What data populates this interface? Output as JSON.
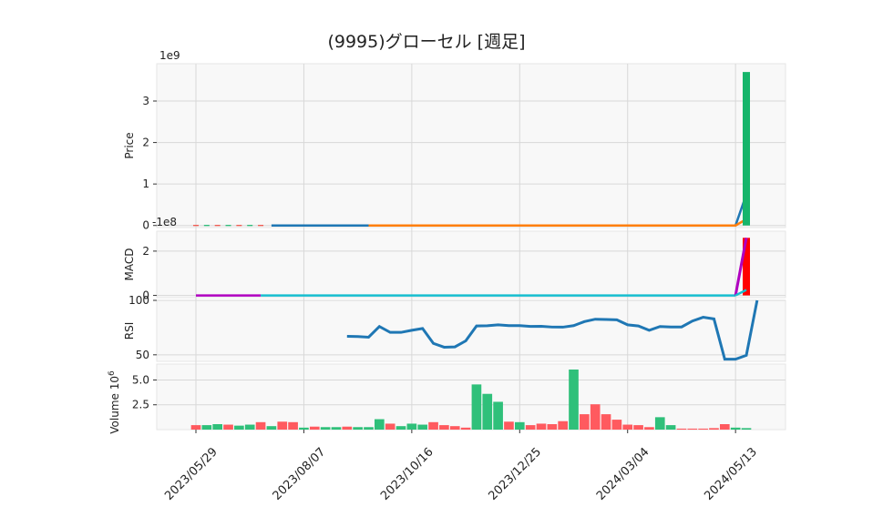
{
  "chart_data": {
    "type": "candlestick-multi-panel",
    "title": "(9995)グローセル  [週足]",
    "x_dates": [
      "2023/05/29",
      "2023/06/05",
      "2023/06/12",
      "2023/06/19",
      "2023/06/26",
      "2023/07/03",
      "2023/07/10",
      "2023/07/17",
      "2023/07/24",
      "2023/07/31",
      "2023/08/07",
      "2023/08/14",
      "2023/08/21",
      "2023/08/28",
      "2023/09/04",
      "2023/09/11",
      "2023/09/18",
      "2023/09/25",
      "2023/10/02",
      "2023/10/09",
      "2023/10/16",
      "2023/10/23",
      "2023/10/30",
      "2023/11/06",
      "2023/11/13",
      "2023/11/20",
      "2023/11/27",
      "2023/12/04",
      "2023/12/11",
      "2023/12/18",
      "2023/12/25",
      "2024/01/01",
      "2024/01/08",
      "2024/01/15",
      "2024/01/22",
      "2024/01/29",
      "2024/02/05",
      "2024/02/12",
      "2024/02/19",
      "2024/02/26",
      "2024/03/04",
      "2024/03/11",
      "2024/03/18",
      "2024/03/25",
      "2024/04/01",
      "2024/04/08",
      "2024/04/15",
      "2024/04/22",
      "2024/04/29",
      "2024/05/06",
      "2024/05/13",
      "2024/05/20"
    ],
    "x_tick_labels": [
      "2023/05/29",
      "2023/08/07",
      "2023/10/16",
      "2023/12/25",
      "2024/03/04",
      "2024/05/13"
    ],
    "panels": {
      "price": {
        "ylabel": "Price",
        "offset_label": "1e9",
        "ylim": [
          -0.05,
          3.9
        ],
        "yticks": [
          0,
          1,
          2,
          3
        ],
        "ytick_labels": [
          "0",
          "1",
          "2",
          "3"
        ],
        "big_candle": {
          "date_index": 51,
          "open": 0,
          "close": 3.7
        },
        "ma_short": {
          "from_index": 0,
          "values_end": 0.75
        },
        "ma_long": {
          "from_index": 16,
          "values_end": 0.15
        },
        "colors": {
          "up": "#16b56b",
          "down": "#f0483e",
          "ma_short": "#1f77b4",
          "ma_long": "#ff7f0e"
        }
      },
      "macd": {
        "ylabel": "MACD",
        "offset_label": "-1e8",
        "ylim": [
          -0.1,
          2.9
        ],
        "yticks": [
          0,
          2
        ],
        "ytick_labels": [
          "0",
          "2"
        ],
        "macd_end": 2.6,
        "signal_end": 0.25,
        "hist_end": 2.6,
        "colors": {
          "macd": "#b000c0",
          "signal": "#17becf",
          "hist": "#ff0000"
        }
      },
      "rsi": {
        "ylabel": "RSI",
        "ylim": [
          44,
          100
        ],
        "yticks": [
          50,
          100
        ],
        "ytick_labels": [
          "50",
          "100"
        ],
        "start_index": 14,
        "values": [
          67,
          66.8,
          66.2,
          76,
          70.6,
          70.6,
          72.5,
          74.2,
          60.5,
          57,
          57.3,
          62.8,
          76.5,
          76.7,
          77.5,
          76.8,
          76.8,
          76.1,
          76.2,
          75.5,
          75.4,
          76.8,
          80.5,
          82.7,
          82.4,
          82.1,
          77.5,
          76.5,
          72.5,
          76,
          75.6,
          75.6,
          81,
          84.5,
          83,
          46,
          46,
          49.5,
          100
        ],
        "color": "#1f77b4"
      },
      "volume": {
        "ylabel": "Volume",
        "unit_label": "10",
        "unit_exp": "6",
        "ylim": [
          0,
          6.6
        ],
        "yticks": [
          2.5,
          5.0
        ],
        "ytick_labels": [
          "2.5",
          "5.0"
        ],
        "values": [
          0.45,
          0.45,
          0.55,
          0.5,
          0.4,
          0.5,
          0.75,
          0.35,
          0.8,
          0.75,
          0.2,
          0.3,
          0.25,
          0.25,
          0.3,
          0.25,
          0.25,
          1.05,
          0.6,
          0.35,
          0.6,
          0.5,
          0.75,
          0.45,
          0.35,
          0.2,
          4.55,
          3.6,
          2.8,
          0.8,
          0.75,
          0.45,
          0.6,
          0.55,
          0.85,
          6.05,
          1.55,
          2.55,
          1.55,
          1.0,
          0.5,
          0.45,
          0.25,
          1.25,
          0.45,
          0.1,
          0.1,
          0.1,
          0.15,
          0.55,
          0.2,
          0.15
        ],
        "up": [
          false,
          true,
          true,
          false,
          true,
          true,
          false,
          true,
          false,
          false,
          true,
          false,
          true,
          true,
          false,
          true,
          true,
          true,
          false,
          true,
          true,
          true,
          false,
          false,
          false,
          false,
          true,
          true,
          true,
          false,
          true,
          false,
          false,
          false,
          false,
          true,
          false,
          false,
          false,
          false,
          false,
          false,
          false,
          true,
          true,
          false,
          false,
          false,
          false,
          false,
          true,
          true
        ],
        "colors": {
          "up": "#2fc07a",
          "down": "#ff5a5f"
        }
      }
    }
  }
}
